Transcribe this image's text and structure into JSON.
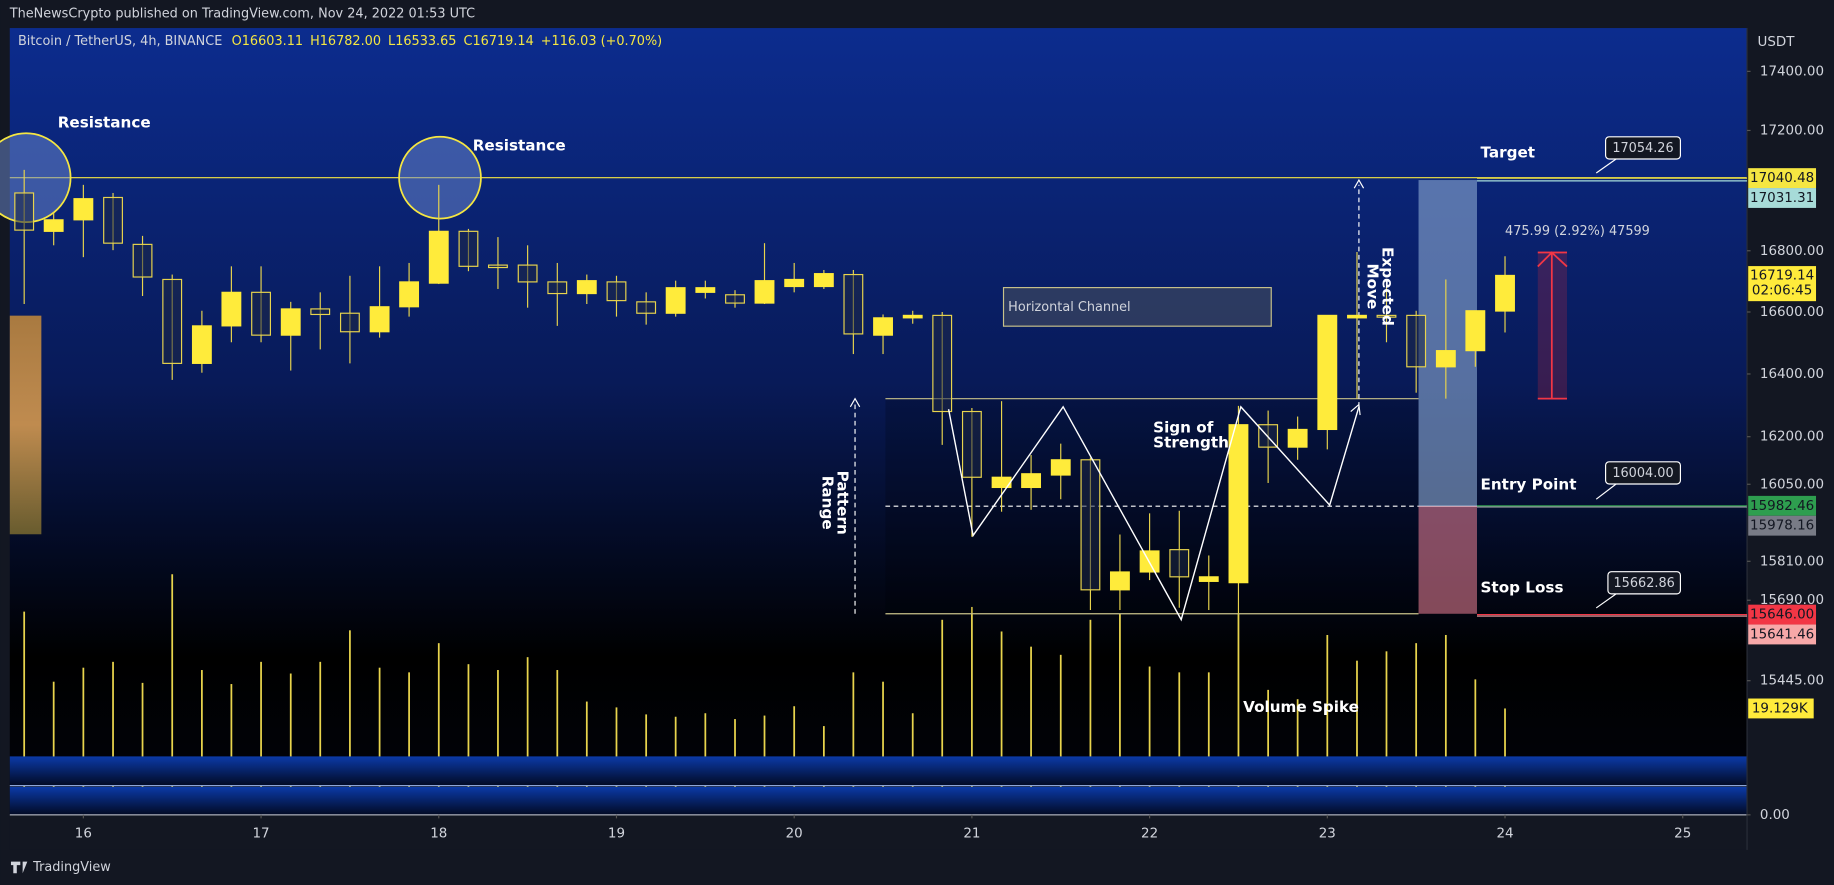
{
  "header": {
    "publisher": "TheNewsCrypto published on TradingView.com, Nov 24, 2022 01:53 UTC",
    "brand": "TradingView"
  },
  "chart_data": {
    "type": "candlestick",
    "symbol": "Bitcoin / TetherUS, 4h, BINANCE",
    "legend": [
      "O16603.11",
      "H16782.00",
      "L16533.65",
      "C16719.14",
      "+116.03 (+0.70%)"
    ],
    "currency": "USDT",
    "log": true,
    "x": [
      15.667,
      15.833,
      16,
      16.167,
      16.333,
      16.5,
      16.667,
      16.833,
      17,
      17.167,
      17.333,
      17.5,
      17.667,
      17.833,
      18,
      18.167,
      18.333,
      18.5,
      18.667,
      18.833,
      19,
      19.167,
      19.333,
      19.5,
      19.667,
      19.833,
      20,
      20.167,
      20.333,
      20.5,
      20.667,
      20.833,
      21,
      21.167,
      21.333,
      21.5,
      21.667,
      21.833,
      22,
      22.167,
      22.333,
      22.5,
      22.667,
      22.833,
      23,
      23.167,
      23.333,
      23.5,
      23.667,
      23.833,
      24
    ],
    "open": [
      16991,
      16864,
      16902,
      16976,
      16821,
      16706,
      16434,
      16555,
      16664,
      16525,
      16610,
      16596,
      16536,
      16617,
      16694,
      16864,
      16753,
      16753,
      16698,
      16660,
      16698,
      16633,
      16596,
      16664,
      16656,
      16629,
      16683,
      16683,
      16722,
      16525,
      16581,
      16589,
      16280,
      16040,
      16040,
      16079,
      16127,
      15722,
      15777,
      15846,
      15748,
      15744,
      16238,
      16167,
      16223,
      16581,
      16589,
      16589,
      16423,
      16475,
      16603.11
    ],
    "high": [
      17068,
      16925,
      17018,
      16991,
      16849,
      16722,
      16604,
      16749,
      16749,
      16633,
      16664,
      16718,
      16749,
      16760,
      17018,
      16872,
      16845,
      16818,
      16760,
      16722,
      16718,
      16664,
      16702,
      16702,
      16671,
      16825,
      16760,
      16737,
      16737,
      16592,
      16604,
      16600,
      16291,
      16313,
      16142,
      16178,
      16134,
      15893,
      15959,
      15967,
      15828,
      16298,
      16283,
      16264,
      16589,
      16796,
      16702,
      16604,
      16706,
      16604,
      16782
    ],
    "low": [
      16626,
      16818,
      16779,
      16802,
      16652,
      16381,
      16404,
      16502,
      16502,
      16411,
      16479,
      16434,
      16517,
      16585,
      16691,
      16733,
      16675,
      16614,
      16555,
      16626,
      16585,
      16559,
      16585,
      16644,
      16614,
      16626,
      16664,
      16675,
      16464,
      16464,
      16562,
      16174,
      15886,
      15964,
      15970,
      16003,
      15660,
      15660,
      15752,
      15667,
      15660,
      15648,
      16054,
      16127,
      16160,
      16321,
      16502,
      16340,
      16321,
      16423,
      16533.65
    ],
    "close": [
      16868,
      16902,
      16972,
      16825,
      16714,
      16434,
      16555,
      16664,
      16525,
      16610,
      16592,
      16536,
      16617,
      16698,
      16864,
      16749,
      16745,
      16698,
      16660,
      16702,
      16637,
      16596,
      16679,
      16679,
      16629,
      16702,
      16706,
      16725,
      16529,
      16581,
      16589,
      16280,
      16072,
      16072,
      16083,
      16127,
      15722,
      15777,
      15842,
      15762,
      15762,
      16238,
      16167,
      16223,
      16589,
      16589,
      16585,
      16423,
      16475,
      16604,
      16719.14
    ],
    "volume": [
      36540,
      23940,
      26460,
      27510,
      23730,
      43260,
      26040,
      23520,
      27510,
      25410,
      27510,
      33180,
      26460,
      25620,
      30870,
      27090,
      26040,
      28350,
      26040,
      20370,
      19320,
      18060,
      17640,
      18270,
      17220,
      17850,
      19530,
      15960,
      25620,
      23940,
      18270,
      35070,
      37380,
      32970,
      30240,
      28770,
      35070,
      36120,
      26670,
      25620,
      25620,
      36120,
      22470,
      20790,
      32340,
      27720,
      29400,
      30870,
      32340,
      24360,
      19129
    ],
    "volume_last_label": "19.129K",
    "countdown": "02:06:45",
    "up_color": "#ffeb3b",
    "down_color": "#e8d44d",
    "xlim": [
      15.586,
      25.362
    ],
    "xticks": [
      16,
      17,
      18,
      19,
      20,
      21,
      22,
      23,
      24,
      25
    ],
    "ylim": [
      15045,
      17548
    ],
    "yticks": [
      {
        "value": 17400,
        "label": "17400.00"
      },
      {
        "value": 17200,
        "label": "17200.00"
      },
      {
        "value": 16800,
        "label": "16800.00"
      },
      {
        "value": 16600,
        "label": "16600.00"
      },
      {
        "value": 16400,
        "label": "16400.00"
      },
      {
        "value": 16200,
        "label": "16200.00"
      },
      {
        "value": 16050,
        "label": "16050.00"
      },
      {
        "value": 15810,
        "label": "15810.00"
      },
      {
        "value": 15690,
        "label": "15690.00"
      },
      {
        "value": 15445,
        "label": "15445.00"
      }
    ],
    "y2lim": [
      0,
      141460
    ],
    "y2ticks": [
      {
        "value": 0,
        "label": "0.00"
      }
    ],
    "price_lines": [
      {
        "value": 17040.48,
        "color": "#f5e642"
      },
      {
        "value": 17031.31,
        "color": "#a7dbd8"
      },
      {
        "value": 15982.46,
        "color": "#2e9e4f"
      },
      {
        "value": 15978.16,
        "color": "#787b86"
      },
      {
        "value": 15646,
        "label": "15646.00",
        "color": "#f23645"
      },
      {
        "value": 15641.46,
        "color": "#f7a8a8"
      }
    ],
    "annotations": {
      "resistance_1": "Resistance",
      "resistance_2": "Resistance",
      "target": "Target",
      "target_price": "17054.26",
      "measure": "475.99 (2.92%) 47599",
      "channel": "Horizontal Channel",
      "expected_move": [
        "Expected",
        "Move"
      ],
      "pattern_range": [
        "Pattern",
        "Range"
      ],
      "sign_of_strength": [
        "Sign of",
        "Strength"
      ],
      "entry": "Entry Point",
      "entry_price": "16004.00",
      "stop": "Stop Loss",
      "stop_price": "15662.86",
      "volume_spike": "Volume Spike"
    }
  }
}
